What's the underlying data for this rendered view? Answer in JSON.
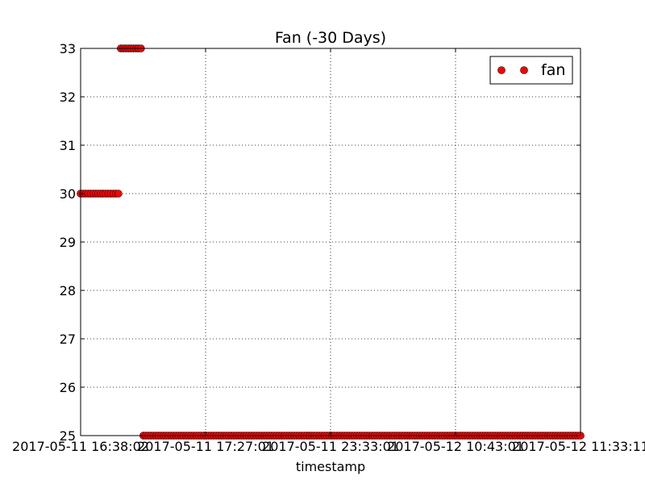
{
  "chart_data": {
    "type": "scatter",
    "title": "Fan (-30 Days)",
    "xlabel": "timestamp",
    "ylabel": "",
    "ylim": [
      25,
      33
    ],
    "y_ticks": [
      25,
      26,
      27,
      28,
      29,
      30,
      31,
      32,
      33
    ],
    "x_ticks": [
      "2017-05-11 16:38:02",
      "2017-05-11 17:27:01",
      "2017-05-11 23:33:01",
      "2017-05-12 10:43:01",
      "2017-05-12 11:33:11"
    ],
    "x_tick_note": "x axis is categorical (sample index); tick labels are timestamps at evenly spaced sample positions",
    "grid": true,
    "legend_position": "top-right",
    "series": [
      {
        "name": "fan",
        "color": "#ff0000",
        "marker": "circle",
        "segments": [
          {
            "y": 30,
            "count": 16
          },
          {
            "y": 33,
            "count": 9
          },
          {
            "y": 25,
            "count": 175
          }
        ]
      }
    ]
  }
}
